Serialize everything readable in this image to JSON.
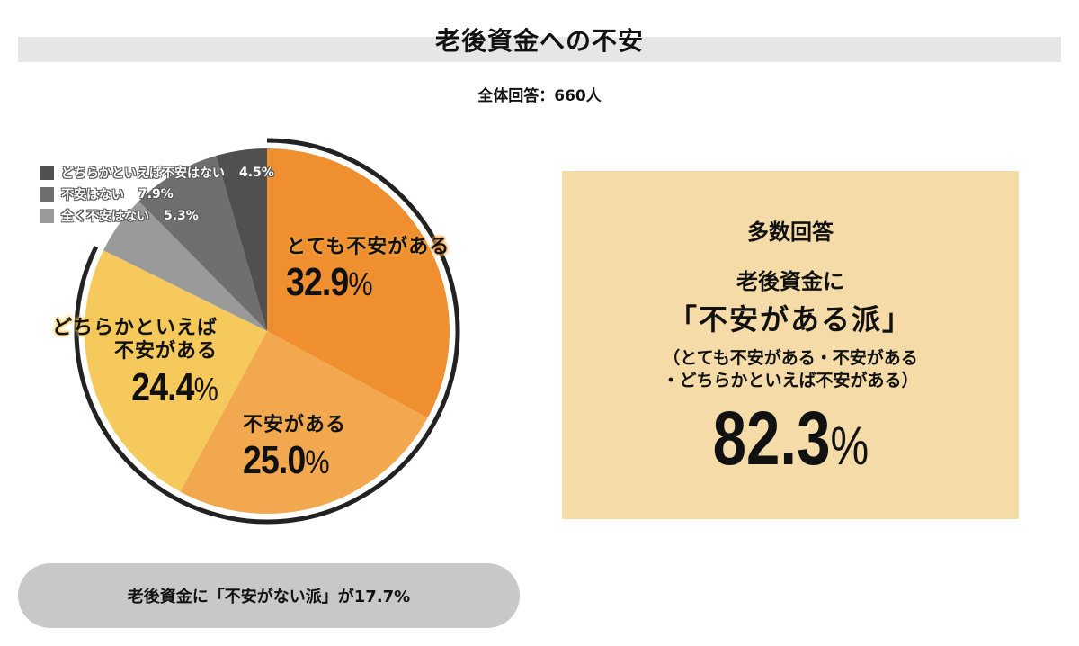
{
  "title": "老後資金への不安",
  "subtitle": "全体回答：660人",
  "chart_data": {
    "type": "pie",
    "title": "老後資金への不安",
    "subtitle": "全体回答：660人",
    "start_angle": "12 o'clock, clockwise",
    "slices": [
      {
        "label": "とても不安がある",
        "value": 32.9,
        "color": "#ef8f2f"
      },
      {
        "label": "不安がある",
        "value": 25.0,
        "color": "#f1a84f"
      },
      {
        "label": "どちらかといえば不安がある",
        "value": 24.4,
        "color": "#f5c95b"
      },
      {
        "label": "全く不安はない",
        "value": 5.3,
        "color": "#9a9a9a"
      },
      {
        "label": "不安はない",
        "value": 7.9,
        "color": "#6f6f6f"
      },
      {
        "label": "どちらかといえば不安はない",
        "value": 4.5,
        "color": "#505050"
      }
    ],
    "legend": [
      {
        "label": "どちらかといえば不安はない",
        "value": "4.5%",
        "color": "#505050"
      },
      {
        "label": "不安はない",
        "value": "7.9%",
        "color": "#6f6f6f"
      },
      {
        "label": "全く不安はない",
        "value": "5.3%",
        "color": "#9a9a9a"
      }
    ],
    "highlight_arc": {
      "covers": [
        "とても不安がある",
        "不安がある",
        "どちらかといえば不安がある"
      ],
      "total": 82.3
    }
  },
  "labels": {
    "very_anxious": {
      "name": "とても不安がある",
      "pct": "32.9",
      "sign": "%"
    },
    "anxious": {
      "name": "不安がある",
      "pct": "25.0",
      "sign": "%"
    },
    "somewhat_anxious": {
      "name1": "どちらかといえば",
      "name2": "不安がある",
      "pct": "24.4",
      "sign": "%"
    }
  },
  "legend": [
    {
      "label": "どちらかといえば不安はない",
      "value": "4.5%"
    },
    {
      "label": "不安はない",
      "value": "7.9%"
    },
    {
      "label": "全く不安はない",
      "value": "5.3%"
    }
  ],
  "summary": {
    "heading": "多数回答",
    "line1": "老後資金に",
    "line2": "「不安がある派」",
    "detail1": "（とても不安がある・不安がある",
    "detail2": "・どちらかといえば不安がある）",
    "big_value": "82.3",
    "big_sign": "%"
  },
  "footer": "老後資金に「不安がない派」が17.7%"
}
